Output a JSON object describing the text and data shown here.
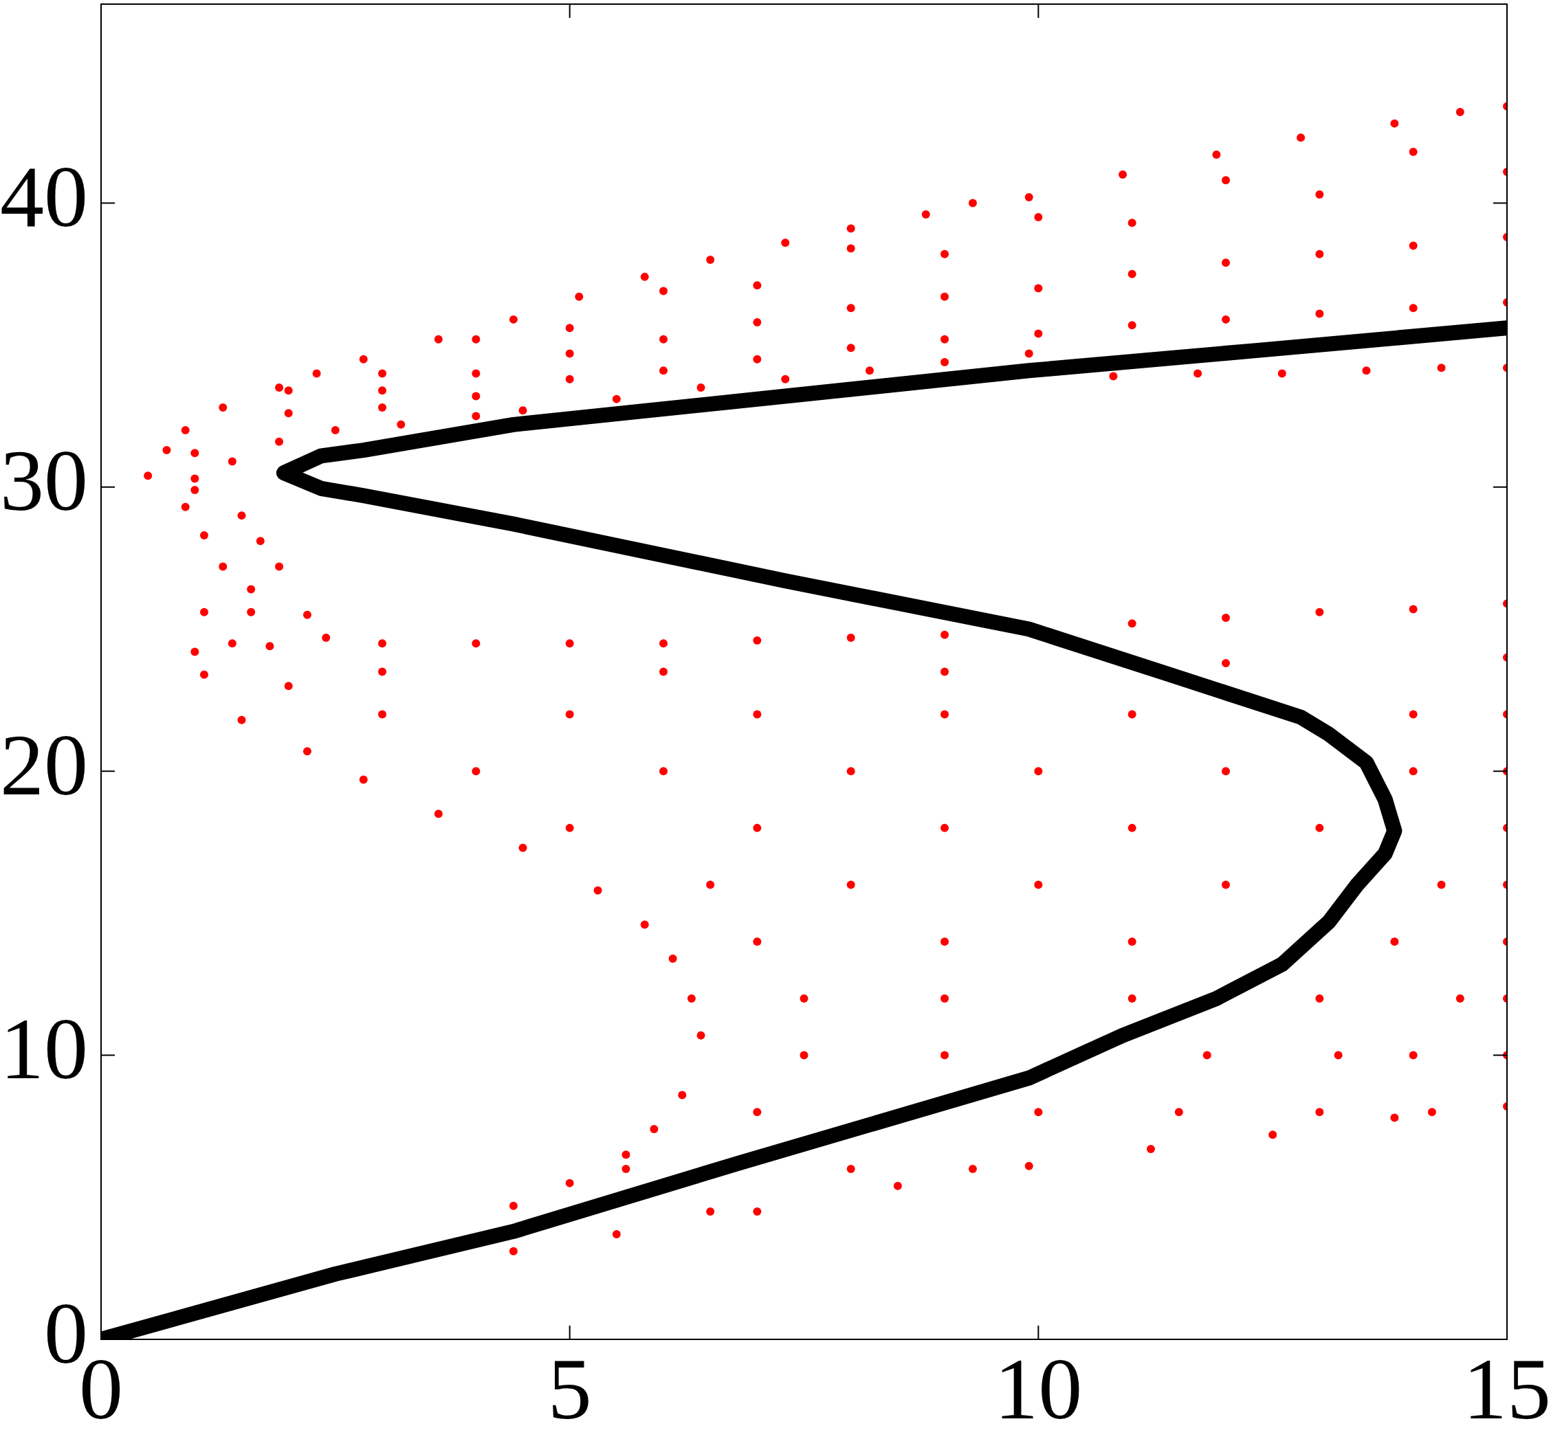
{
  "chart_data": {
    "type": "scatter",
    "marker": "circle",
    "xlim": [
      0,
      15
    ],
    "ylim": [
      0,
      47
    ],
    "xticks": [
      0,
      5,
      10,
      15
    ],
    "yticks": [
      0,
      10,
      20,
      30,
      40
    ],
    "series": [
      {
        "color": "#ff0000",
        "x": [
          0.5,
          0.7,
          0.9,
          1.3,
          1.9,
          2.3,
          2.8,
          3.6,
          4.4,
          5.1,
          5.8,
          6.5,
          7.3,
          8,
          8.8,
          9.3,
          9.9,
          10.9,
          11.9,
          12.8,
          13.8,
          14.5,
          15,
          1,
          1.4,
          1.9,
          2.5,
          3.2,
          4,
          4.5,
          5.5,
          6.4,
          7.3,
          8.2,
          9,
          9.9,
          10.8,
          11.7,
          12.6,
          13.5,
          14.3,
          15,
          1,
          2,
          3,
          4,
          5,
          6,
          7,
          8,
          9,
          10,
          11,
          12,
          13,
          14,
          15,
          3,
          5,
          7,
          9,
          11,
          13,
          15,
          4,
          6,
          8,
          10,
          12,
          14,
          2,
          4,
          6,
          8,
          10,
          12,
          14,
          3,
          5,
          7,
          9,
          11,
          13,
          15
        ],
        "values": [
          30.4,
          31.3,
          32,
          32.8,
          33.5,
          34,
          34.5,
          35.2,
          35.9,
          36.7,
          37.4,
          38,
          38.6,
          39.1,
          39.6,
          40,
          40.2,
          41,
          41.7,
          42.3,
          42.8,
          43.2,
          43.4,
          30.3,
          30.9,
          31.6,
          32,
          32.2,
          32.5,
          32.7,
          33.1,
          33.5,
          33.8,
          34.1,
          34.4,
          34.7,
          33.9,
          34,
          34,
          34.1,
          34.2,
          34.2,
          31.2,
          32.6,
          33.4,
          34,
          34.7,
          35.2,
          35.8,
          36.3,
          36.7,
          37,
          37.5,
          37.9,
          38.2,
          38.5,
          38.8,
          34,
          35.6,
          37.1,
          38.2,
          39.3,
          40.3,
          41.1,
          33.2,
          34.1,
          34.9,
          35.4,
          35.9,
          36.3,
          33.4,
          35.2,
          36.9,
          38.4,
          39.5,
          40.8,
          41.8,
          32.8,
          33.8,
          34.5,
          35.2,
          35.7,
          36.1,
          36.5
        ]
      },
      {
        "color": "#ff0000",
        "x": [
          0.9,
          1,
          1.5,
          1.1,
          1.3,
          1.9,
          1.7,
          1.1,
          2.2,
          1.6,
          1.6,
          1,
          1.4,
          1.8,
          1.1,
          1.5,
          2.2,
          2.8,
          3.6,
          4.5,
          5.3,
          5.8,
          6.1,
          6.3,
          6.4,
          6.2,
          5.9,
          5.6,
          5,
          4.4,
          2.4,
          3,
          4,
          5,
          6,
          7,
          8,
          9,
          11,
          12,
          13,
          14,
          15,
          4.4,
          5.5,
          7,
          8.5,
          9.9,
          11.2,
          12.5,
          13.8,
          15,
          15,
          15,
          15,
          15,
          15,
          15,
          15,
          15,
          3,
          5,
          7,
          9,
          11,
          14,
          4,
          6,
          8,
          10,
          12,
          14,
          5,
          7,
          9,
          11,
          13,
          6.5,
          8,
          10,
          12,
          14.3,
          7,
          9,
          11,
          13.8,
          7.5,
          9,
          11,
          13,
          14.5,
          7.5,
          9,
          11.8,
          13.2,
          14,
          7,
          10,
          11.5,
          13,
          14.2,
          5.6,
          8,
          9.3,
          6.5,
          3,
          6,
          9,
          12,
          2
        ],
        "values": [
          29.3,
          29.9,
          29,
          28.3,
          27.2,
          27.2,
          28.1,
          25.6,
          25.5,
          25.6,
          26.4,
          24.2,
          24.5,
          24.4,
          23.4,
          21.8,
          20.7,
          19.7,
          18.5,
          17.3,
          15.8,
          14.6,
          13.4,
          12,
          10.7,
          8.6,
          7.4,
          6.5,
          5.5,
          4.7,
          24.7,
          24.5,
          24.5,
          24.5,
          24.5,
          24.6,
          24.7,
          24.8,
          25.2,
          25.4,
          25.6,
          25.7,
          25.9,
          3.1,
          3.7,
          4.5,
          5.4,
          6.1,
          6.7,
          7.2,
          7.8,
          8.2,
          10,
          12,
          14,
          16,
          18,
          20,
          22,
          24,
          22,
          22,
          22,
          22,
          22,
          22,
          20,
          20,
          20,
          20,
          20,
          20,
          18,
          18,
          18,
          18,
          18,
          16,
          16,
          16,
          16,
          16,
          14,
          14,
          14,
          14,
          12,
          12,
          12,
          12,
          12,
          10,
          10,
          10,
          10,
          10,
          8,
          8,
          8,
          8,
          8,
          6,
          6,
          6,
          4.5,
          23.5,
          23.5,
          23.5,
          23.8,
          23
        ]
      },
      {
        "type": "line",
        "marker": "none",
        "color": "#000000",
        "x": [
          0,
          2.5,
          4.4,
          6.8,
          9.9,
          10.9,
          11.9,
          12.6,
          13.1,
          13.4,
          13.7,
          13.8,
          13.7,
          13.5,
          13.1,
          12.8,
          11.4,
          9.9,
          7.3,
          4.4,
          2.8,
          2.35,
          1.95,
          2.35,
          2.8,
          4.4,
          7.3,
          9.9,
          12.3,
          15
        ],
        "values": [
          0,
          2.3,
          3.8,
          6.2,
          9.2,
          10.7,
          12,
          13.2,
          14.7,
          16,
          17.1,
          17.9,
          19,
          20.3,
          21.3,
          21.9,
          23.4,
          25,
          26.7,
          28.7,
          29.7,
          29.95,
          30.5,
          31.1,
          31.3,
          32.2,
          33.2,
          34.1,
          34.8,
          35.6
        ]
      }
    ]
  }
}
